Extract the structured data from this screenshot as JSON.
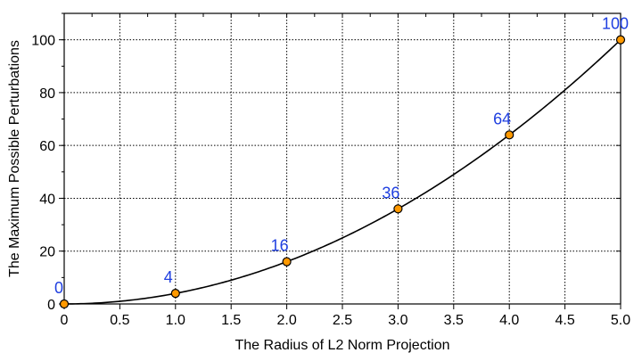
{
  "chart_data": {
    "type": "line",
    "xlabel": "The Radius of L2 Norm Projection",
    "ylabel": "The Maximum Possible Perturbations",
    "xlim": [
      0,
      5.0
    ],
    "ylim": [
      0,
      110
    ],
    "x_ticks": [
      "0",
      "0.5",
      "1.0",
      "1.5",
      "2.0",
      "2.5",
      "3.0",
      "3.5",
      "4.0",
      "4.5",
      "5.0"
    ],
    "y_ticks": [
      "0",
      "20",
      "40",
      "60",
      "80",
      "100"
    ],
    "grid": true,
    "series": [
      {
        "color": "#000000",
        "marker_color": "#ff9900",
        "points": [
          {
            "x": 0,
            "y": 0,
            "label": "0"
          },
          {
            "x": 1,
            "y": 4,
            "label": "4"
          },
          {
            "x": 2,
            "y": 16,
            "label": "16"
          },
          {
            "x": 3,
            "y": 36,
            "label": "36"
          },
          {
            "x": 4,
            "y": 64,
            "label": "64"
          },
          {
            "x": 5,
            "y": 100,
            "label": "100"
          }
        ]
      }
    ],
    "label_color": "#1f3fe0"
  }
}
